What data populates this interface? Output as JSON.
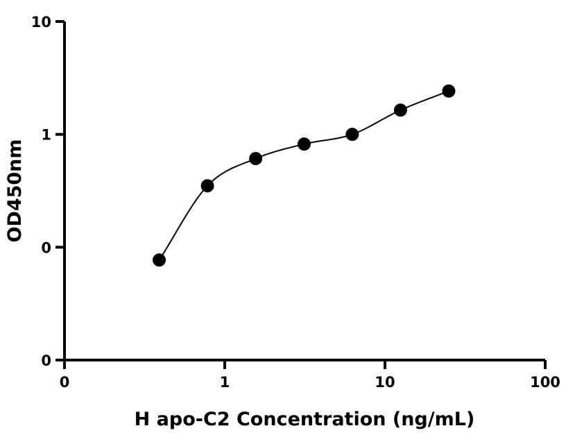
{
  "chart_data": {
    "type": "scatter",
    "title": "",
    "xlabel": "H apo-C2 Concentration (ng/mL)",
    "ylabel": "OD450nm",
    "x_scale": "log",
    "y_scale": "log",
    "xlim": [
      0.1,
      100
    ],
    "ylim": [
      0.01,
      10
    ],
    "x_ticks": [
      {
        "value": 0.1,
        "label": "0"
      },
      {
        "value": 1,
        "label": "1"
      },
      {
        "value": 10,
        "label": "10"
      },
      {
        "value": 100,
        "label": "100"
      }
    ],
    "y_ticks": [
      {
        "value": 0.01,
        "label": "0"
      },
      {
        "value": 0.1,
        "label": "0"
      },
      {
        "value": 1,
        "label": "1"
      },
      {
        "value": 10,
        "label": "10"
      }
    ],
    "grid": false,
    "legend": "none",
    "series": [
      {
        "marker": "filled-circle",
        "color": "#000000",
        "x": [
          0.39,
          0.78,
          1.56,
          3.13,
          6.25,
          12.5,
          25
        ],
        "y": [
          0.077,
          0.35,
          0.61,
          0.82,
          1.0,
          1.64,
          2.42
        ]
      }
    ],
    "fit_curve": {
      "color": "#000000",
      "x_range": [
        0.39,
        25
      ]
    }
  }
}
